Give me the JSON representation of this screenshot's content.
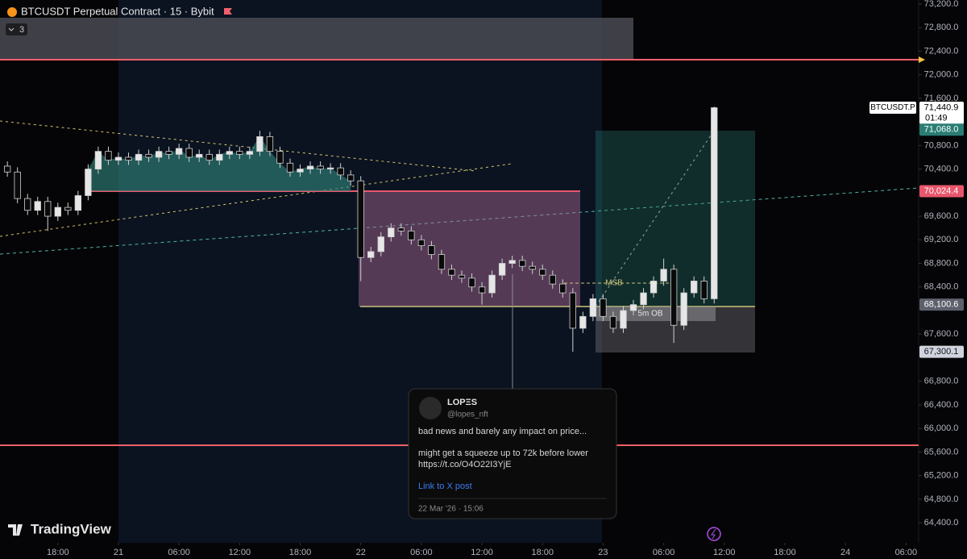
{
  "chart_data": {
    "type": "candlestick",
    "title": "BTCUSDT Perpetual Contract · 15 · Bybit",
    "indicator_count": "3",
    "symbol_label": "BTCUSDT.P",
    "countdown": "01:49",
    "watermark": "TradingView",
    "annotations": [
      "MSB",
      "5m OB"
    ],
    "up_color": "#e6e6e6",
    "down_color": "#0a0a0a",
    "wick_color": "#d0d0d0",
    "fill_color": "#2f7f78",
    "x": [
      -11,
      -10,
      -9,
      -8,
      -7,
      -6,
      -5,
      -4,
      -3,
      -2,
      -1,
      0,
      1,
      2,
      3,
      4,
      5,
      6,
      7,
      8,
      9,
      10,
      11,
      12,
      13,
      14,
      15,
      16,
      17,
      18,
      19,
      20,
      21,
      22,
      23,
      24,
      25,
      26,
      27,
      28,
      29,
      30,
      31,
      32,
      33,
      34,
      35,
      36,
      37,
      38,
      39,
      40,
      41,
      42,
      43,
      44,
      45,
      46,
      47,
      48,
      49,
      50,
      51,
      52,
      53,
      54,
      55,
      56,
      57,
      58,
      59
    ],
    "open": [
      70450,
      70350,
      69900,
      69700,
      69850,
      69600,
      69750,
      69700,
      69950,
      70400,
      70700,
      70550,
      70600,
      70550,
      70650,
      70600,
      70700,
      70650,
      70750,
      70600,
      70650,
      70550,
      70650,
      70700,
      70650,
      70700,
      70950,
      70700,
      70500,
      70350,
      70400,
      70450,
      70400,
      70420,
      70300,
      70200,
      68900,
      69000,
      69250,
      69400,
      69350,
      69200,
      69100,
      68950,
      68700,
      68600,
      68550,
      68400,
      68300,
      68600,
      68800,
      68850,
      68750,
      68700,
      68600,
      68450,
      68300,
      67700,
      67900,
      68200,
      67900,
      67700,
      68000,
      68100,
      68300,
      68500,
      68700,
      67750,
      68300,
      68500,
      68200
    ],
    "high": [
      70530,
      70430,
      69980,
      69930,
      69930,
      69830,
      69830,
      70030,
      70480,
      70780,
      70780,
      70680,
      70680,
      70730,
      70730,
      70780,
      70780,
      70830,
      70830,
      70730,
      70730,
      70730,
      70780,
      70780,
      70780,
      71050,
      71030,
      70780,
      70580,
      70480,
      70530,
      70530,
      70500,
      70500,
      70380,
      70280,
      69080,
      69330,
      69480,
      69480,
      69430,
      69280,
      69180,
      69030,
      68780,
      68680,
      68630,
      68480,
      68680,
      68880,
      68930,
      68930,
      68830,
      68780,
      68680,
      68530,
      68380,
      67980,
      68280,
      68280,
      67980,
      68080,
      68180,
      68380,
      68580,
      68880,
      68780,
      68380,
      68580,
      68580,
      71460
    ],
    "low": [
      70270,
      69820,
      69620,
      69620,
      69350,
      69520,
      69620,
      69620,
      69870,
      70320,
      70470,
      70470,
      70470,
      70470,
      70520,
      70520,
      70570,
      70570,
      70520,
      70520,
      70470,
      70470,
      70570,
      70570,
      70570,
      70620,
      70620,
      70420,
      70270,
      70270,
      70320,
      70320,
      70320,
      70220,
      70120,
      68500,
      68820,
      68920,
      69170,
      69270,
      69120,
      69020,
      68870,
      68620,
      68520,
      68470,
      68320,
      68100,
      68220,
      68520,
      68720,
      68670,
      68620,
      68520,
      68370,
      68220,
      67300,
      67620,
      67820,
      67820,
      67620,
      67620,
      67920,
      68020,
      68220,
      68420,
      67450,
      67670,
      68220,
      68120,
      68120
    ],
    "close": [
      70350,
      69900,
      69700,
      69850,
      69600,
      69750,
      69700,
      69950,
      70400,
      70700,
      70550,
      70600,
      70550,
      70650,
      70600,
      70700,
      70650,
      70750,
      70600,
      70650,
      70550,
      70650,
      70700,
      70650,
      70700,
      70950,
      70700,
      70500,
      70350,
      70400,
      70450,
      70400,
      70420,
      70300,
      70200,
      68900,
      69000,
      69250,
      69400,
      69350,
      69200,
      69100,
      68950,
      68700,
      68600,
      68550,
      68400,
      68300,
      68600,
      68800,
      68850,
      68750,
      68700,
      68600,
      68450,
      68300,
      67700,
      67900,
      68200,
      67900,
      67700,
      68000,
      68100,
      68300,
      68500,
      68700,
      67750,
      68300,
      68500,
      68200,
      71440.9
    ],
    "xlim": [
      -11.73,
      79.25
    ],
    "xticks": [
      {
        "value": -6,
        "label": "18:00"
      },
      {
        "value": 0,
        "label": "21"
      },
      {
        "value": 6,
        "label": "06:00"
      },
      {
        "value": 12,
        "label": "12:00"
      },
      {
        "value": 18,
        "label": "18:00"
      },
      {
        "value": 24,
        "label": "22"
      },
      {
        "value": 30,
        "label": "06:00"
      },
      {
        "value": 36,
        "label": "12:00"
      },
      {
        "value": 42,
        "label": "18:00"
      },
      {
        "value": 48,
        "label": "23"
      },
      {
        "value": 54,
        "label": "06:00"
      },
      {
        "value": 60,
        "label": "12:00"
      },
      {
        "value": 66,
        "label": "18:00"
      },
      {
        "value": 72,
        "label": "24"
      },
      {
        "value": 78,
        "label": "06:00"
      }
    ],
    "ylim": [
      64059,
      73268
    ],
    "yticks": [
      {
        "value": 73200,
        "label": "73,200.0"
      },
      {
        "value": 72800,
        "label": "72,800.0"
      },
      {
        "value": 72400,
        "label": "72,400.0"
      },
      {
        "value": 72000,
        "label": "72,000.0"
      },
      {
        "value": 71600,
        "label": "71,600.0"
      },
      {
        "value": 70800,
        "label": "70,800.0"
      },
      {
        "value": 70400,
        "label": "70,400.0"
      },
      {
        "value": 69600,
        "label": "69,600.0"
      },
      {
        "value": 69200,
        "label": "69,200.0"
      },
      {
        "value": 68800,
        "label": "68,800.0"
      },
      {
        "value": 68400,
        "label": "68,400.0"
      },
      {
        "value": 67600,
        "label": "67,600.0"
      },
      {
        "value": 66800,
        "label": "66,800.0"
      },
      {
        "value": 66400,
        "label": "66,400.0"
      },
      {
        "value": 66000,
        "label": "66,000.0"
      },
      {
        "value": 65600,
        "label": "65,600.0"
      },
      {
        "value": 65200,
        "label": "65,200.0"
      },
      {
        "value": 64800,
        "label": "64,800.0"
      },
      {
        "value": 64400,
        "label": "64,400.0"
      }
    ],
    "price_badges": [
      {
        "value": 71440.9,
        "label": "71,440.9",
        "color": "#ffffff",
        "text_color": "#000000"
      },
      {
        "value": 71068.0,
        "label": "71,068.0",
        "color": "#2a7d74",
        "text_color": "#ffffff"
      },
      {
        "value": 70024.4,
        "label": "70,024.4",
        "color": "#e8566c",
        "text_color": "#ffffff"
      },
      {
        "value": 68100.6,
        "label": "68,100.6",
        "color": "#5d606b",
        "text_color": "#ffffff"
      },
      {
        "value": 67300.1,
        "label": "67,300.1",
        "color": "#d1d4dc",
        "text_color": "#131722"
      }
    ]
  },
  "tweet": {
    "name": "LOPΞS",
    "handle": "@lopes_nft",
    "line1": "bad news and barely any impact on price...",
    "line2": "might get a squeeze up to 72k before lower",
    "link": "https://t.co/O4O22I3YjE",
    "cta": "Link to X post",
    "date": "22 Mar '26 · 15:06"
  }
}
